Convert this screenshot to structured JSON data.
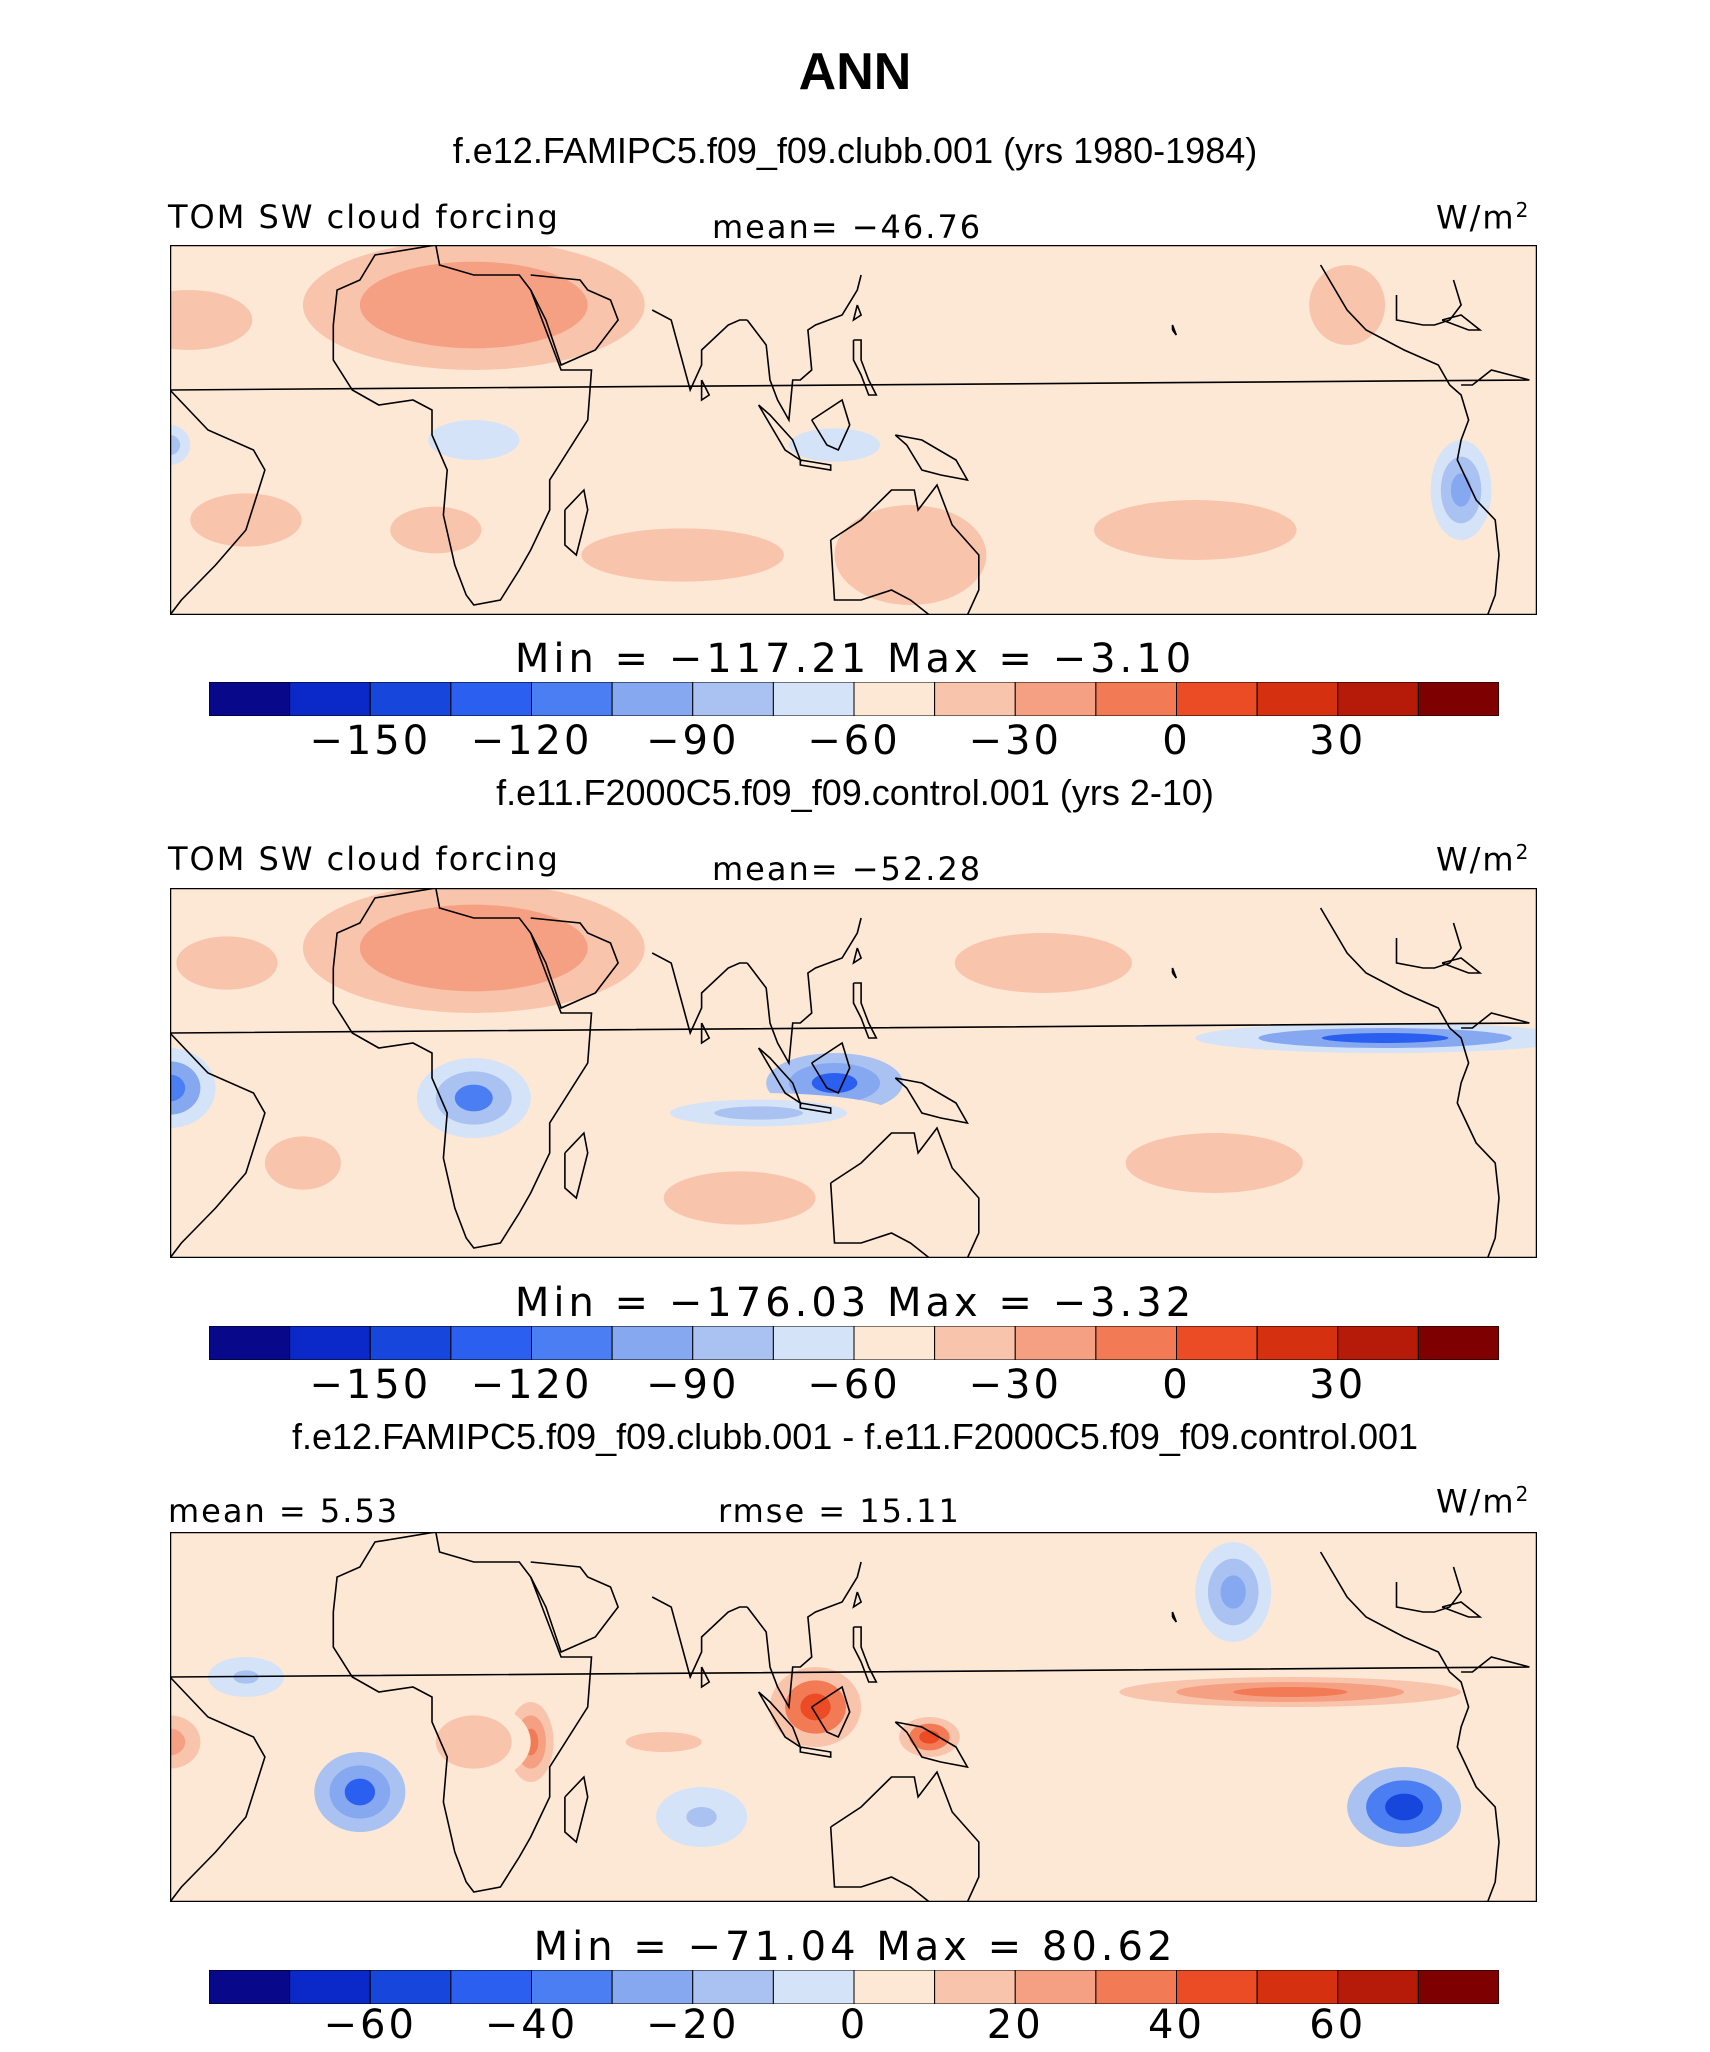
{
  "page_title": "ANN",
  "palette": [
    "#08088a",
    "#0b28c9",
    "#1746dc",
    "#2a5ff0",
    "#4a7ef2",
    "#86a8f1",
    "#a9c2f1",
    "#d4e3f7",
    "#fde8d6",
    "#f9c4ac",
    "#f6a083",
    "#f27a55",
    "#ec4c25",
    "#d5300f",
    "#b51b08",
    "#7f0000"
  ],
  "coast_color": "#000000",
  "chart_data": [
    {
      "type": "heatmap",
      "title": "f.e12.FAMIPC5.f09_f09.clubb.001 (yrs 1980-1984)",
      "left_label": "TOM SW cloud forcing",
      "center_label": "mean= −46.76",
      "units_label": "W/m",
      "units_exp": "2",
      "mean": -46.76,
      "min": -117.21,
      "max": -3.1,
      "minmax_label": "Min = −117.21 Max = −3.10",
      "levels": [
        -165,
        -150,
        -135,
        -120,
        -105,
        -90,
        -75,
        -60,
        -45,
        -30,
        -15,
        0,
        15,
        30,
        45
      ],
      "tick_labels": [
        "−150",
        "−120",
        "−90",
        "−60",
        "−30",
        "0",
        "30"
      ],
      "tick_values": [
        -150,
        -120,
        -90,
        -60,
        -30,
        0,
        30
      ],
      "blobs": [
        {
          "lon": 20,
          "lat": 25,
          "rx": 45,
          "ry": 13,
          "v": -15
        },
        {
          "lon": -55,
          "lat": 22,
          "rx": 25,
          "ry": 9,
          "v": -40
        },
        {
          "lon": -40,
          "lat": -18,
          "rx": 22,
          "ry": 8,
          "v": -40
        },
        {
          "lon": 10,
          "lat": -20,
          "rx": 18,
          "ry": 7,
          "v": -40
        },
        {
          "lon": 75,
          "lat": -25,
          "rx": 40,
          "ry": 8,
          "v": -40
        },
        {
          "lon": 135,
          "lat": -25,
          "rx": 20,
          "ry": 10,
          "v": -30
        },
        {
          "lon": -150,
          "lat": -20,
          "rx": 40,
          "ry": 9,
          "v": -40
        },
        {
          "lon": 175,
          "lat": 20,
          "rx": 25,
          "ry": 8,
          "v": -45
        },
        {
          "lon": -110,
          "lat": 25,
          "rx": 10,
          "ry": 8,
          "v": -30
        },
        {
          "lon": 20,
          "lat": -2,
          "rx": 18,
          "ry": 6,
          "v": -70
        },
        {
          "lon": 115,
          "lat": -3,
          "rx": 18,
          "ry": 5,
          "v": -65
        },
        {
          "lon": -80,
          "lat": -12,
          "rx": 8,
          "ry": 10,
          "v": -90
        },
        {
          "lon": -100,
          "lat": 10,
          "rx": 40,
          "ry": 4,
          "v": -55
        },
        {
          "lon": -60,
          "lat": -3,
          "rx": 8,
          "ry": 6,
          "v": -75
        }
      ]
    },
    {
      "type": "heatmap",
      "title": "f.e11.F2000C5.f09_f09.control.001 (yrs 2-10)",
      "left_label": "TOM SW cloud forcing",
      "center_label": "mean= −52.28",
      "units_label": "W/m",
      "units_exp": "2",
      "mean": -52.28,
      "min": -176.03,
      "max": -3.32,
      "minmax_label": "Min = −176.03 Max = −3.32",
      "levels": [
        -165,
        -150,
        -135,
        -120,
        -105,
        -90,
        -75,
        -60,
        -45,
        -30,
        -15,
        0,
        15,
        30,
        45
      ],
      "tick_labels": [
        "−150",
        "−120",
        "−90",
        "−60",
        "−30",
        "0",
        "30"
      ],
      "tick_values": [
        -150,
        -120,
        -90,
        -60,
        -30,
        0,
        30
      ],
      "blobs": [
        {
          "lon": 20,
          "lat": 25,
          "rx": 45,
          "ry": 13,
          "v": -15
        },
        {
          "lon": -45,
          "lat": 22,
          "rx": 20,
          "ry": 8,
          "v": -40
        },
        {
          "lon": 170,
          "lat": 22,
          "rx": 35,
          "ry": 9,
          "v": -40
        },
        {
          "lon": -145,
          "lat": -18,
          "rx": 35,
          "ry": 9,
          "v": -40
        },
        {
          "lon": -25,
          "lat": -18,
          "rx": 15,
          "ry": 8,
          "v": -40
        },
        {
          "lon": 90,
          "lat": -25,
          "rx": 30,
          "ry": 8,
          "v": -40
        },
        {
          "lon": -60,
          "lat": -3,
          "rx": 12,
          "ry": 8,
          "v": -110
        },
        {
          "lon": 20,
          "lat": -5,
          "rx": 15,
          "ry": 8,
          "v": -105
        },
        {
          "lon": 115,
          "lat": -2,
          "rx": 18,
          "ry": 6,
          "v": -130
        },
        {
          "lon": -100,
          "lat": 7,
          "rx": 50,
          "ry": 3,
          "v": -120
        },
        {
          "lon": 95,
          "lat": -8,
          "rx": 35,
          "ry": 4,
          "v": -75
        }
      ]
    },
    {
      "type": "heatmap",
      "title": "f.e12.FAMIPC5.f09_f09.clubb.001 - f.e11.F2000C5.f09_f09.control.001",
      "left_label": "mean = 5.53",
      "center_label": "rmse = 15.11",
      "units_label": "W/m",
      "units_exp": "2",
      "mean": 5.53,
      "rmse": 15.11,
      "min": -71.04,
      "max": 80.62,
      "minmax_label": "Min = −71.04 Max = 80.62",
      "levels": [
        -70,
        -60,
        -50,
        -40,
        -30,
        -20,
        -10,
        0,
        10,
        20,
        30,
        40,
        50,
        60,
        70
      ],
      "tick_labels": [
        "−60",
        "−40",
        "−20",
        "0",
        "20",
        "40",
        "60"
      ],
      "tick_values": [
        -60,
        -40,
        -20,
        0,
        20,
        40,
        60
      ],
      "blobs": [
        {
          "lon": -10,
          "lat": -15,
          "rx": 12,
          "ry": 8,
          "v": -45
        },
        {
          "lon": -95,
          "lat": -18,
          "rx": 15,
          "ry": 8,
          "v": -55
        },
        {
          "lon": -140,
          "lat": 25,
          "rx": 10,
          "ry": 10,
          "v": -25
        },
        {
          "lon": -125,
          "lat": 5,
          "rx": 45,
          "ry": 3,
          "v": 40
        },
        {
          "lon": 110,
          "lat": 2,
          "rx": 12,
          "ry": 8,
          "v": 45
        },
        {
          "lon": 140,
          "lat": -4,
          "rx": 8,
          "ry": 4,
          "v": 50
        },
        {
          "lon": 35,
          "lat": -5,
          "rx": 6,
          "ry": 8,
          "v": 35
        },
        {
          "lon": -60,
          "lat": -5,
          "rx": 12,
          "ry": 8,
          "v": 25
        },
        {
          "lon": 20,
          "lat": -5,
          "rx": 15,
          "ry": 8,
          "v": 20
        },
        {
          "lon": 70,
          "lat": -5,
          "rx": 15,
          "ry": 3,
          "v": 20
        },
        {
          "lon": 80,
          "lat": -20,
          "rx": 12,
          "ry": 6,
          "v": -15
        },
        {
          "lon": -40,
          "lat": 8,
          "rx": 10,
          "ry": 4,
          "v": -15
        }
      ]
    }
  ]
}
